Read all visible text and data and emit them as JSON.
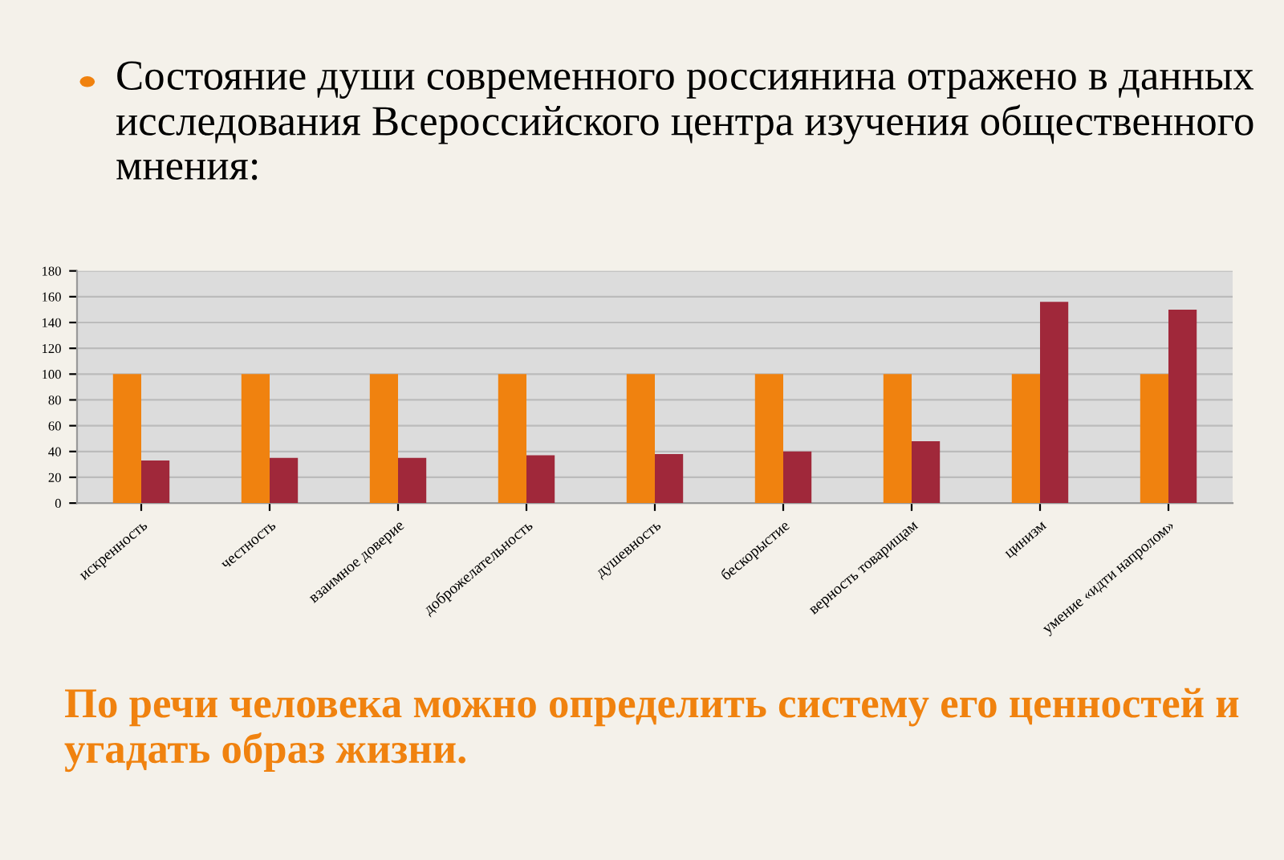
{
  "chart_data": {
    "type": "bar",
    "title": "Состояние души современного россиянина отражено в данных исследования Всероссийского центра изучения общественного мнения:",
    "categories": [
      "искренность",
      "честность",
      "взаимное доверие",
      "доброжелательность",
      "душевность",
      "бескорыстие",
      "верность товарищам",
      "цинизм",
      "умение «идти напролом»"
    ],
    "series": [
      {
        "color": "#f0820f",
        "values": [
          100,
          100,
          100,
          100,
          100,
          100,
          100,
          100,
          100
        ]
      },
      {
        "color": "#a0283a",
        "values": [
          33,
          35,
          35,
          37,
          38,
          40,
          48,
          156,
          150
        ]
      }
    ],
    "ylim": [
      0,
      180
    ],
    "yticks": [
      0,
      20,
      40,
      60,
      80,
      100,
      120,
      140,
      160,
      180
    ],
    "grid": "y",
    "legend": false,
    "annotations": [
      "По речи человека можно определить систему его ценностей и угадать образ жизни."
    ]
  }
}
